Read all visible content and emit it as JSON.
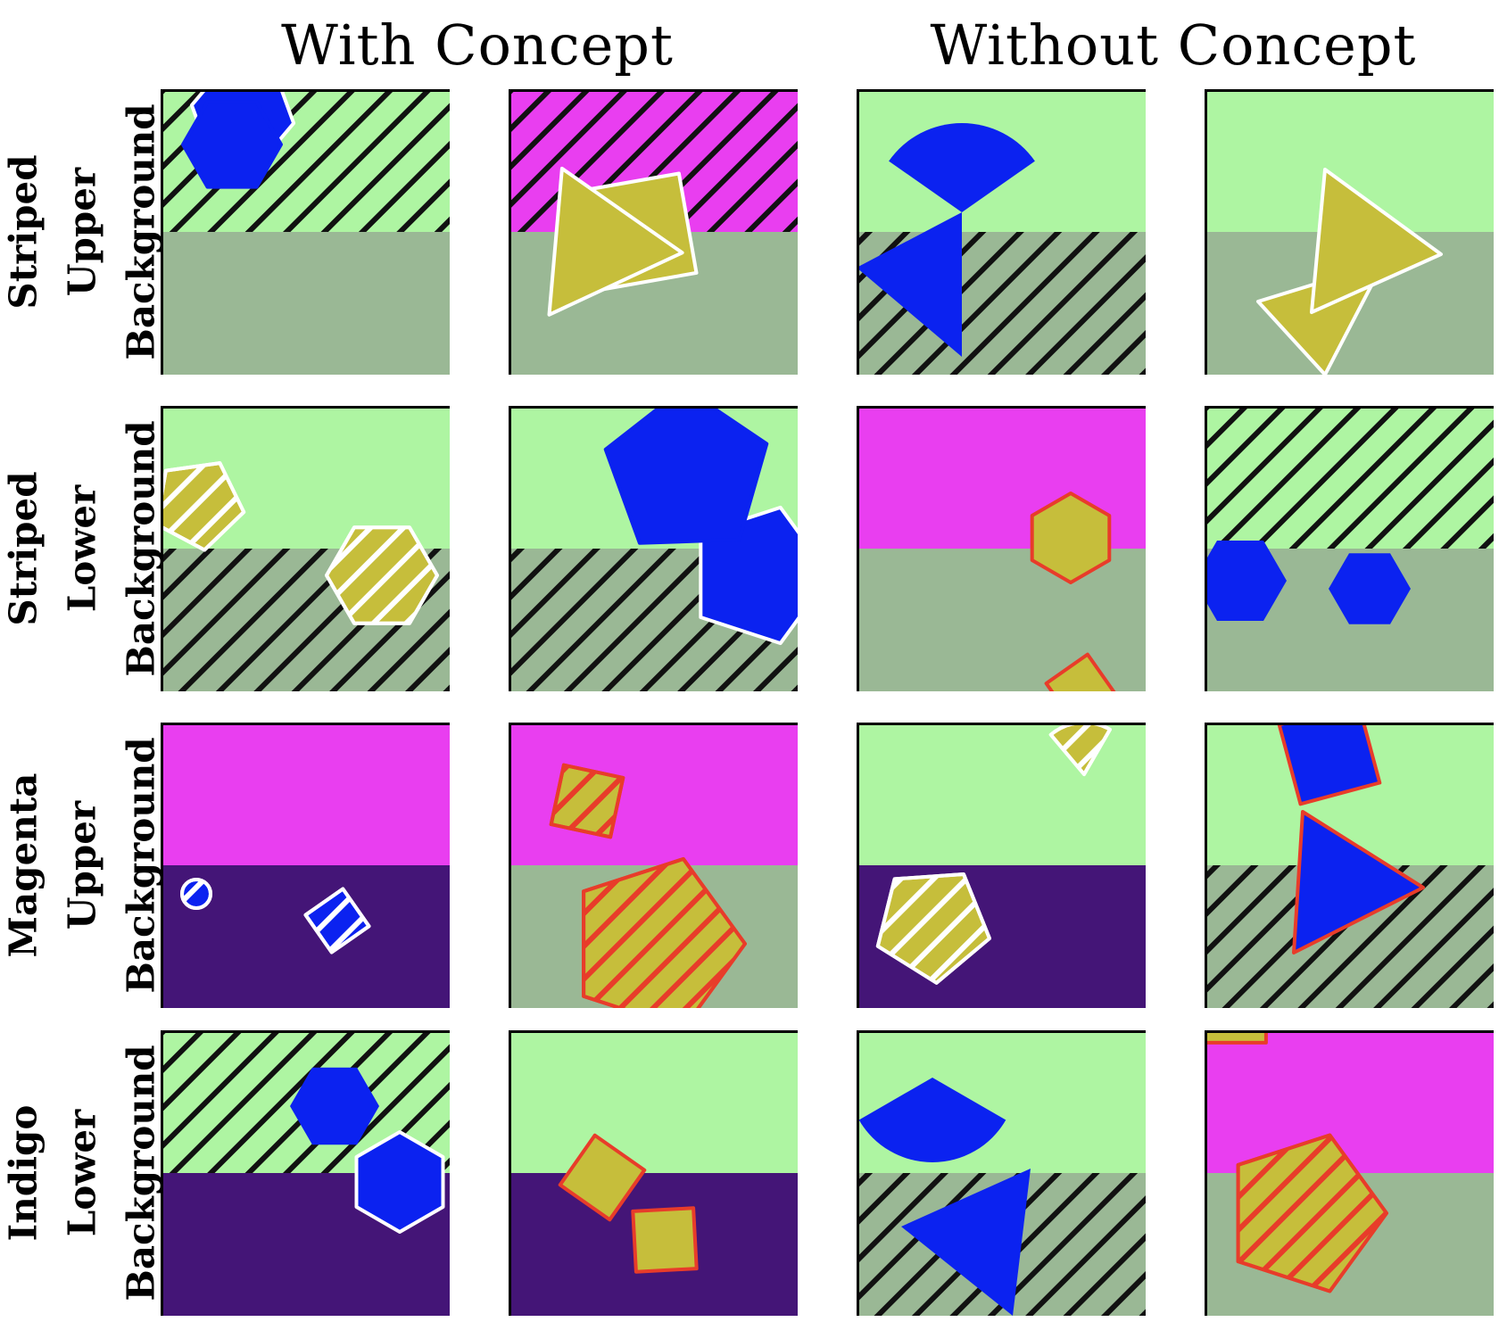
{
  "headers": {
    "with": "With Concept",
    "without": "Without Concept"
  },
  "rows": [
    {
      "id": "striped-upper",
      "lines": [
        "Striped",
        "Upper",
        "Background"
      ]
    },
    {
      "id": "striped-lower",
      "lines": [
        "Striped",
        "Lower",
        "Background"
      ]
    },
    {
      "id": "magenta-upper",
      "lines": [
        "Magenta",
        "Upper",
        "Background"
      ]
    },
    {
      "id": "indigo-lower",
      "lines": [
        "Indigo",
        "Lower",
        "Background"
      ]
    }
  ],
  "colors": {
    "light_green": "#aef5a2",
    "sage": "#9ab895",
    "magenta": "#e93ef0",
    "indigo": "#441577",
    "blue": "#0b22f0",
    "olive": "#c6be3b",
    "white_outline": "#ffffff",
    "red_outline": "#e83c2a"
  }
}
